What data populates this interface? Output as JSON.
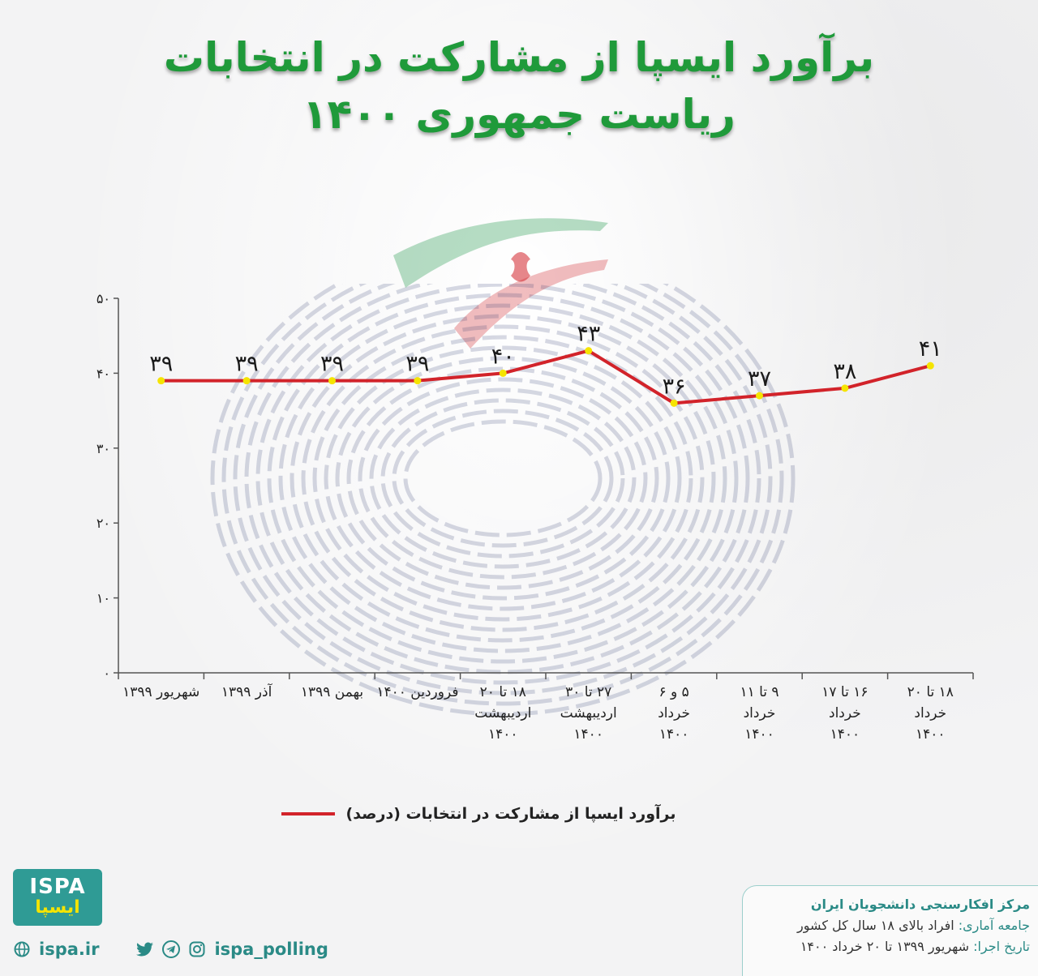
{
  "title": {
    "line1": "برآورد ایسپا از مشارکت در انتخابات",
    "line2": "ریاست جمهوری ۱۴۰۰"
  },
  "chart_data": {
    "type": "line",
    "title": "برآورد ایسپا از مشارکت در انتخابات ریاست جمهوری ۱۴۰۰",
    "xlabel": "",
    "ylabel": "",
    "ylim": [
      0,
      50
    ],
    "yticks": [
      0,
      10,
      20,
      30,
      40,
      50
    ],
    "ytick_labels": [
      "۰",
      "۱۰",
      "۲۰",
      "۳۰",
      "۴۰",
      "۵۰"
    ],
    "grid": false,
    "legend_position": "bottom",
    "categories": [
      [
        "شهریور ۱۳۹۹"
      ],
      [
        "آذر ۱۳۹۹"
      ],
      [
        "بهمن ۱۳۹۹"
      ],
      [
        "فروردین ۱۴۰۰"
      ],
      [
        "۱۸ تا ۲۰",
        "اردیبهشت",
        "۱۴۰۰"
      ],
      [
        "۲۷ تا ۳۰",
        "اردیبهشت",
        "۱۴۰۰"
      ],
      [
        "۵ و ۶",
        "خرداد",
        "۱۴۰۰"
      ],
      [
        "۹ تا ۱۱",
        "خرداد",
        "۱۴۰۰"
      ],
      [
        "۱۶ تا ۱۷",
        "خرداد",
        "۱۴۰۰"
      ],
      [
        "۱۸ تا ۲۰",
        "خرداد",
        "۱۴۰۰"
      ]
    ],
    "series": [
      {
        "name": "برآورد ایسپا از مشارکت در انتخابات  (درصد)",
        "values": [
          39,
          39,
          39,
          39,
          40,
          43,
          36,
          37,
          38,
          41
        ],
        "value_labels": [
          "۳۹",
          "۳۹",
          "۳۹",
          "۳۹",
          "۴۰",
          "۴۳",
          "۳۶",
          "۳۷",
          "۳۸",
          "۴۱"
        ],
        "color": "#d2232a",
        "marker_color": "#f5e400"
      }
    ]
  },
  "legend": {
    "label": "برآورد ایسپا از مشارکت در انتخابات  (درصد)",
    "color": "#d2232a"
  },
  "branding": {
    "logo_en": "ISPA",
    "logo_fa": "ایسپا",
    "website": "ispa.ir",
    "social_handle": "ispa_polling",
    "icons": [
      "globe-icon",
      "twitter-icon",
      "telegram-icon",
      "instagram-icon"
    ],
    "accent_color": "#2a8a86"
  },
  "info": {
    "org": "مرکز افکارسنجی دانشجویان ایران",
    "population_label": "جامعه آماری:",
    "population_value": "افراد بالای ۱۸ سال کل کشور",
    "date_label": "تاریخ اجرا:",
    "date_value": "شهریور ۱۳۹۹ تا ۲۰ خرداد ۱۴۰۰"
  }
}
